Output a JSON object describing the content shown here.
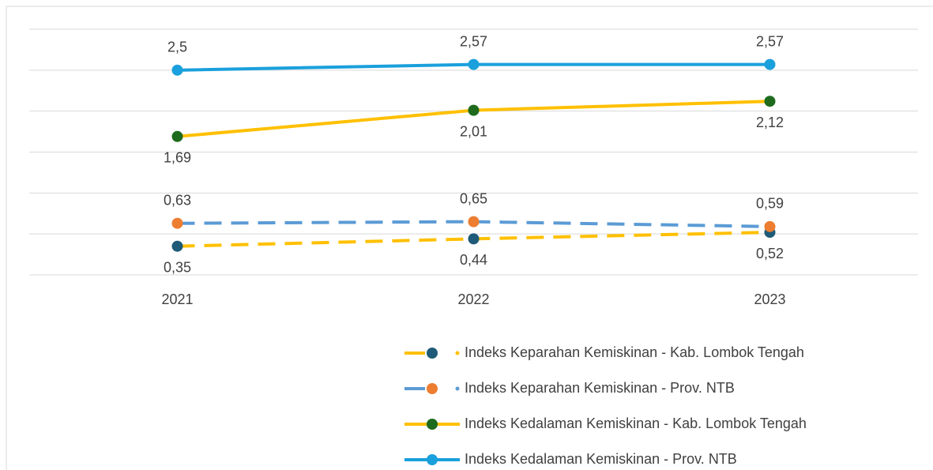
{
  "chart_data": {
    "type": "line",
    "categories": [
      "2021",
      "2022",
      "2023"
    ],
    "ylim": [
      0,
      3
    ],
    "yticks": [
      0,
      0.5,
      1,
      1.5,
      2,
      2.5,
      3
    ],
    "grid": true,
    "legend": "bottom",
    "series": [
      {
        "name": "Indeks Keparahan Kemiskinan - Kab. Lombok Tengah",
        "color": "#FFC000",
        "marker_color": "#1F5B78",
        "dash": true,
        "label_position": "below",
        "values": [
          0.35,
          0.44,
          0.52
        ],
        "value_labels": [
          "0,35",
          "0,44",
          "0,52"
        ]
      },
      {
        "name": "Indeks Keparahan Kemiskinan - Prov. NTB",
        "color": "#5B9BD5",
        "marker_color": "#ED7D31",
        "dash": true,
        "label_position": "above",
        "values": [
          0.63,
          0.65,
          0.59
        ],
        "value_labels": [
          "0,63",
          "0,65",
          "0,59"
        ]
      },
      {
        "name": "Indeks Kedalaman Kemiskinan - Kab. Lombok Tengah",
        "color": "#FFC000",
        "marker_color": "#1E6B1E",
        "dash": false,
        "label_position": "below",
        "values": [
          1.69,
          2.01,
          2.12
        ],
        "value_labels": [
          "1,69",
          "2,01",
          "2,12"
        ]
      },
      {
        "name": "Indeks Kedalaman Kemiskinan - Prov. NTB",
        "color": "#1AA0DC",
        "marker_color": "#1AA0DC",
        "dash": false,
        "label_position": "above",
        "values": [
          2.5,
          2.57,
          2.57
        ],
        "value_labels": [
          "2,5",
          "2,57",
          "2,57"
        ]
      }
    ]
  }
}
